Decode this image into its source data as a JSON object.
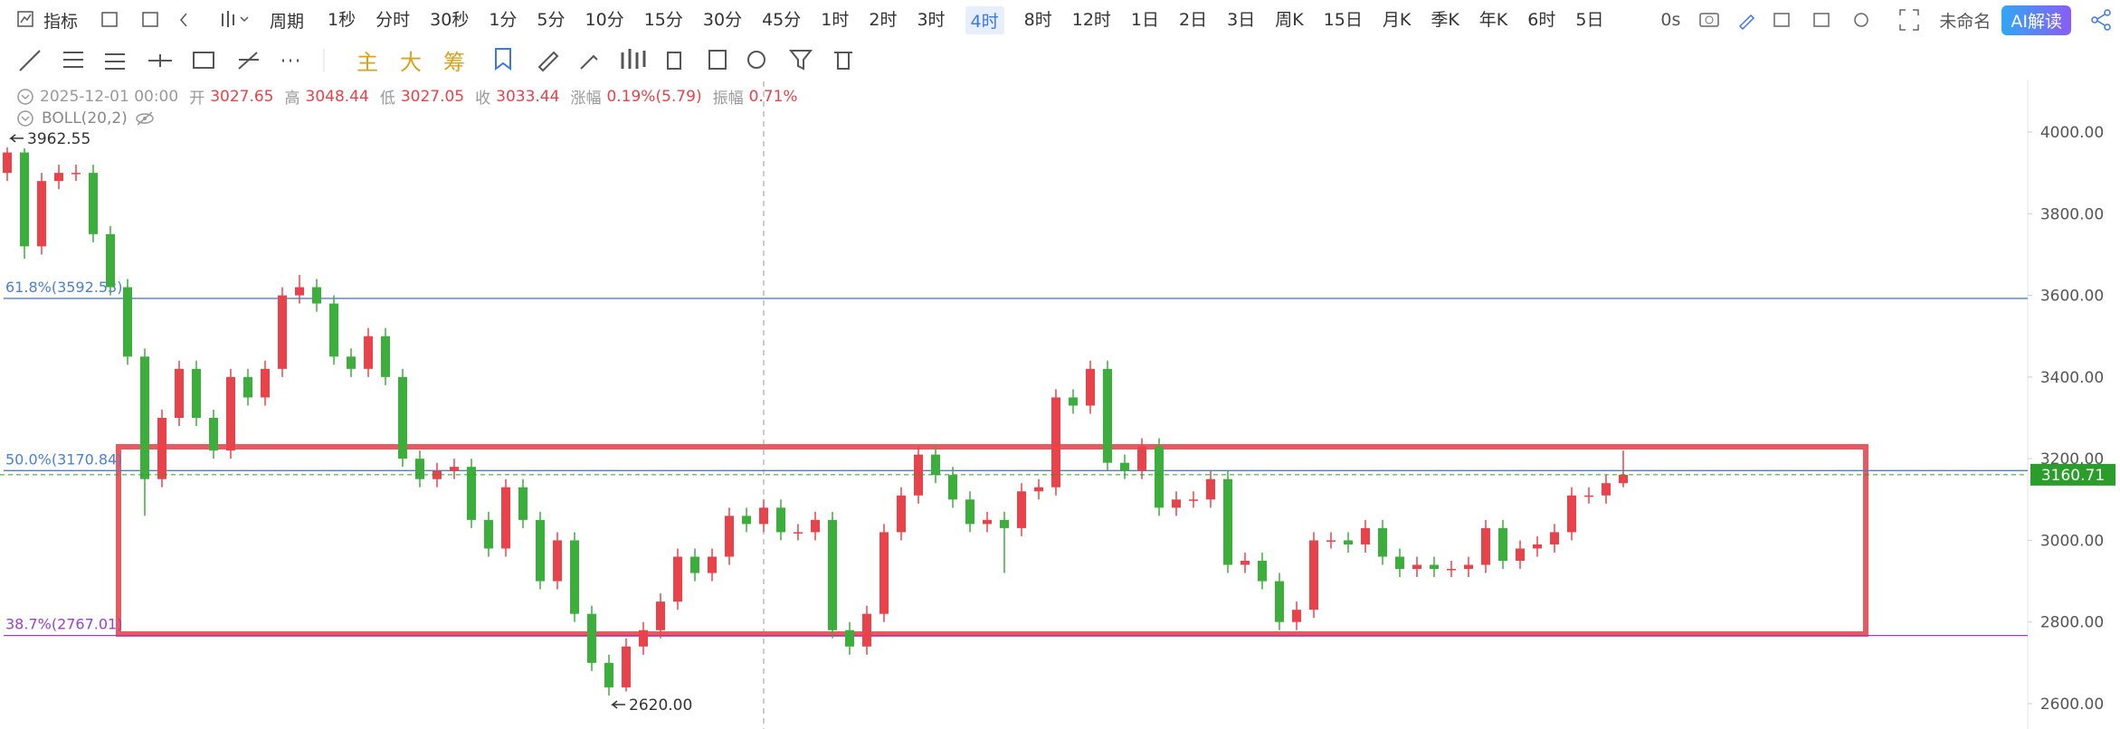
{
  "toolbar": {
    "indicator": "指标",
    "period": "周期",
    "periods": [
      "1秒",
      "分时",
      "30秒",
      "1分",
      "5分",
      "10分",
      "15分",
      "30分",
      "45分",
      "1时",
      "2时",
      "3时",
      "4时",
      "8时",
      "12时",
      "1日",
      "2日",
      "3日",
      "周K",
      "15日",
      "月K",
      "季K",
      "年K",
      "6时",
      "5日"
    ],
    "timer": "0s",
    "name": "未命名",
    "ai": "AI解读"
  },
  "drawing_tools": {
    "texts": [
      "主",
      "大",
      "筹"
    ]
  },
  "info": {
    "datetime": "2025-12-01 00:00",
    "fields": [
      {
        "label": "开",
        "value": "3027.65"
      },
      {
        "label": "高",
        "value": "3048.44"
      },
      {
        "label": "低",
        "value": "3027.05"
      },
      {
        "label": "收",
        "value": "3033.44"
      },
      {
        "label": "涨幅",
        "value": "0.19%(5.79)"
      },
      {
        "label": "振幅",
        "value": "0.71%"
      }
    ]
  },
  "indicator": "BOLL(20,2)",
  "chart_data": {
    "type": "candlestick",
    "up_color": "#e8424a",
    "down_color": "#3cae3c",
    "open": [
      3900,
      3950,
      3720,
      3880,
      3900,
      3900,
      3750,
      3620,
      3450,
      3150,
      3300,
      3420,
      3300,
      3220,
      3400,
      3350,
      3420,
      3600,
      3620,
      3580,
      3450,
      3420,
      3500,
      3400,
      3200,
      3150,
      3170,
      3180,
      3050,
      2980,
      3130,
      3050,
      2900,
      3000,
      2820,
      2700,
      2640,
      2740,
      2780,
      2850,
      2960,
      2920,
      2960,
      3060,
      3040,
      3080,
      3020,
      3020,
      3050,
      2780,
      2740,
      2820,
      3020,
      3110,
      3210,
      3160,
      3100,
      3040,
      3050,
      3030,
      3120,
      3130,
      3350,
      3330,
      3420,
      3190,
      3170,
      3230,
      3080,
      3100,
      3100,
      3150,
      2940,
      2950,
      2900,
      2800,
      2830,
      3000,
      3000,
      2990,
      3030,
      2960,
      2930,
      2940,
      2930,
      2930,
      2940,
      3030,
      2950,
      2980,
      2990,
      3020,
      3110,
      3110,
      3140
    ],
    "high": [
      3962.55,
      3960,
      3900,
      3920,
      3920,
      3920,
      3770,
      3640,
      3470,
      3320,
      3440,
      3440,
      3320,
      3420,
      3420,
      3440,
      3620,
      3650,
      3640,
      3600,
      3470,
      3520,
      3520,
      3420,
      3220,
      3190,
      3200,
      3200,
      3070,
      3150,
      3150,
      3070,
      3020,
      3020,
      2840,
      2720,
      2760,
      2800,
      2870,
      2980,
      2980,
      2980,
      3080,
      3080,
      3100,
      3100,
      3040,
      3070,
      3070,
      2800,
      2840,
      3040,
      3130,
      3230,
      3230,
      3180,
      3120,
      3070,
      3070,
      3140,
      3150,
      3370,
      3370,
      3440,
      3440,
      3210,
      3250,
      3250,
      3120,
      3120,
      3170,
      3170,
      2970,
      2970,
      2920,
      2850,
      3020,
      3020,
      3020,
      3050,
      3050,
      2980,
      2960,
      2960,
      2950,
      2960,
      3050,
      3050,
      3000,
      3010,
      3040,
      3130,
      3130,
      3160,
      3220
    ],
    "low": [
      3880,
      3690,
      3700,
      3860,
      3880,
      3730,
      3600,
      3430,
      3060,
      3130,
      3280,
      3280,
      3200,
      3200,
      3330,
      3330,
      3400,
      3580,
      3560,
      3430,
      3400,
      3400,
      3380,
      3180,
      3130,
      3130,
      3150,
      3030,
      2960,
      2960,
      3030,
      2880,
      2880,
      2800,
      2680,
      2620,
      2630,
      2720,
      2760,
      2830,
      2900,
      2900,
      2940,
      3020,
      3020,
      3000,
      3000,
      3000,
      2760,
      2720,
      2720,
      2800,
      3000,
      3090,
      3140,
      3080,
      3020,
      3020,
      2920,
      3010,
      3100,
      3110,
      3310,
      3310,
      3170,
      3150,
      3150,
      3060,
      3060,
      3080,
      3080,
      2920,
      2920,
      2880,
      2780,
      2780,
      2810,
      2980,
      2970,
      2970,
      2940,
      2910,
      2910,
      2910,
      2910,
      2910,
      2920,
      2930,
      2930,
      2960,
      2970,
      3000,
      3090,
      3090,
      3130
    ],
    "close": [
      3950,
      3720,
      3880,
      3900,
      3900,
      3750,
      3620,
      3450,
      3150,
      3300,
      3420,
      3300,
      3220,
      3400,
      3350,
      3420,
      3600,
      3620,
      3580,
      3450,
      3420,
      3500,
      3400,
      3200,
      3150,
      3170,
      3180,
      3050,
      2980,
      3130,
      3050,
      2900,
      3000,
      2820,
      2700,
      2640,
      2740,
      2780,
      2850,
      2960,
      2920,
      2960,
      3060,
      3040,
      3080,
      3020,
      3020,
      3050,
      2780,
      2740,
      2820,
      3020,
      3110,
      3210,
      3160,
      3100,
      3040,
      3050,
      3030,
      3120,
      3130,
      3350,
      3330,
      3420,
      3190,
      3170,
      3230,
      3080,
      3100,
      3100,
      3150,
      2940,
      2950,
      2900,
      2800,
      2830,
      3000,
      3000,
      2990,
      3030,
      2960,
      2930,
      2940,
      2930,
      2930,
      2940,
      3030,
      2950,
      2980,
      2990,
      3020,
      3110,
      3110,
      3140,
      3160.71
    ],
    "ylim": [
      2538,
      4124
    ],
    "yticks": [
      {
        "value": 2600,
        "label": "2600.00"
      },
      {
        "value": 2800,
        "label": "2800.00"
      },
      {
        "value": 3000,
        "label": "3000.00"
      },
      {
        "value": 3200,
        "label": "3200.00"
      },
      {
        "value": 3400,
        "label": "3400.00"
      },
      {
        "value": 3600,
        "label": "3600.00"
      },
      {
        "value": 3800,
        "label": "3800.00"
      },
      {
        "value": 4000,
        "label": "4000.00"
      }
    ],
    "levels": [
      {
        "value": 3592.53,
        "label": "61.8%(3592.53)",
        "color": "#4a7fd6"
      },
      {
        "value": 3170.84,
        "label": "50.0%(3170.84)",
        "color": "#4a7fd6"
      },
      {
        "value": 2767.01,
        "label": "38.7%(2767.01)",
        "color": "#9b40c9"
      }
    ],
    "extremes": [
      {
        "value": 3962.55,
        "label": "3962.55"
      },
      {
        "value": 2620,
        "label": "2620.00"
      }
    ],
    "last_price": {
      "value": 3160.71,
      "label": "3160.71",
      "color": "#2a9d2a"
    }
  }
}
